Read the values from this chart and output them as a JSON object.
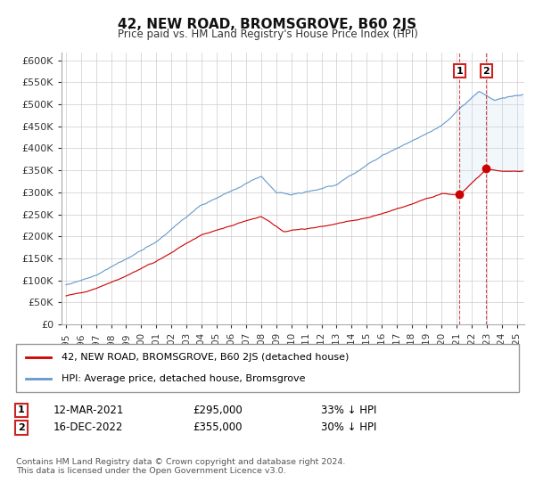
{
  "title": "42, NEW ROAD, BROMSGROVE, B60 2JS",
  "subtitle": "Price paid vs. HM Land Registry's House Price Index (HPI)",
  "ylabel_ticks": [
    "£0",
    "£50K",
    "£100K",
    "£150K",
    "£200K",
    "£250K",
    "£300K",
    "£350K",
    "£400K",
    "£450K",
    "£500K",
    "£550K",
    "£600K"
  ],
  "ylim": [
    0,
    620000
  ],
  "xlim_start": 1994.7,
  "xlim_end": 2025.5,
  "legend_label_red": "42, NEW ROAD, BROMSGROVE, B60 2JS (detached house)",
  "legend_label_blue": "HPI: Average price, detached house, Bromsgrove",
  "transaction1_date": "12-MAR-2021",
  "transaction1_price": "£295,000",
  "transaction1_hpi": "33% ↓ HPI",
  "transaction1_year": 2021.19,
  "transaction1_value": 295000,
  "transaction2_date": "16-DEC-2022",
  "transaction2_price": "£355,000",
  "transaction2_hpi": "30% ↓ HPI",
  "transaction2_year": 2022.96,
  "transaction2_value": 355000,
  "footer": "Contains HM Land Registry data © Crown copyright and database right 2024.\nThis data is licensed under the Open Government Licence v3.0.",
  "line_color_red": "#cc0000",
  "line_color_blue": "#6699cc",
  "fill_color_blue": "#cce0f0",
  "background_color": "#ffffff",
  "grid_color": "#cccccc"
}
